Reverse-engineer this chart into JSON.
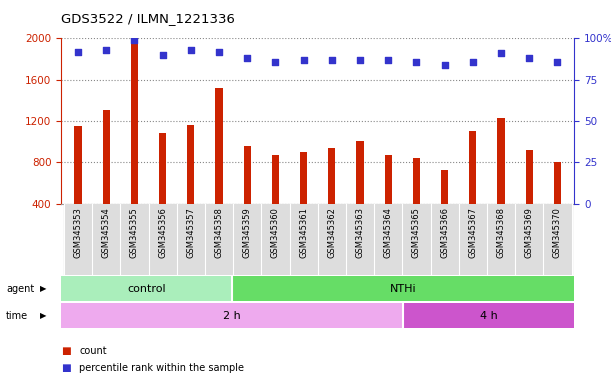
{
  "title": "GDS3522 / ILMN_1221336",
  "samples": [
    "GSM345353",
    "GSM345354",
    "GSM345355",
    "GSM345356",
    "GSM345357",
    "GSM345358",
    "GSM345359",
    "GSM345360",
    "GSM345361",
    "GSM345362",
    "GSM345363",
    "GSM345364",
    "GSM345365",
    "GSM345366",
    "GSM345367",
    "GSM345368",
    "GSM345369",
    "GSM345370"
  ],
  "counts": [
    1150,
    1310,
    1970,
    1080,
    1160,
    1520,
    960,
    870,
    900,
    940,
    1010,
    870,
    840,
    720,
    1100,
    1230,
    920,
    800
  ],
  "percentile_ranks": [
    92,
    93,
    99,
    90,
    93,
    92,
    88,
    86,
    87,
    87,
    87,
    87,
    86,
    84,
    86,
    91,
    88,
    86
  ],
  "bar_color": "#CC2200",
  "dot_color": "#3333CC",
  "ylim_left": [
    400,
    2000
  ],
  "ylim_right": [
    0,
    100
  ],
  "yticks_left": [
    400,
    800,
    1200,
    1600,
    2000
  ],
  "yticks_right": [
    0,
    25,
    50,
    75,
    100
  ],
  "agent_groups": [
    {
      "label": "control",
      "start": 0,
      "end": 6,
      "color": "#AAEEBB"
    },
    {
      "label": "NTHi",
      "start": 6,
      "end": 18,
      "color": "#66DD66"
    }
  ],
  "time_groups": [
    {
      "label": "2 h",
      "start": 0,
      "end": 12,
      "color": "#EEAAEE"
    },
    {
      "label": "4 h",
      "start": 12,
      "end": 18,
      "color": "#CC55CC"
    }
  ],
  "legend_items": [
    {
      "color": "#CC2200",
      "label": "count"
    },
    {
      "color": "#3333CC",
      "label": "percentile rank within the sample"
    }
  ],
  "grid_color": "#888888",
  "tick_bg_color": "#DDDDDD",
  "background_color": "#FFFFFF",
  "axis_left_color": "#CC2200",
  "axis_right_color": "#3333CC"
}
